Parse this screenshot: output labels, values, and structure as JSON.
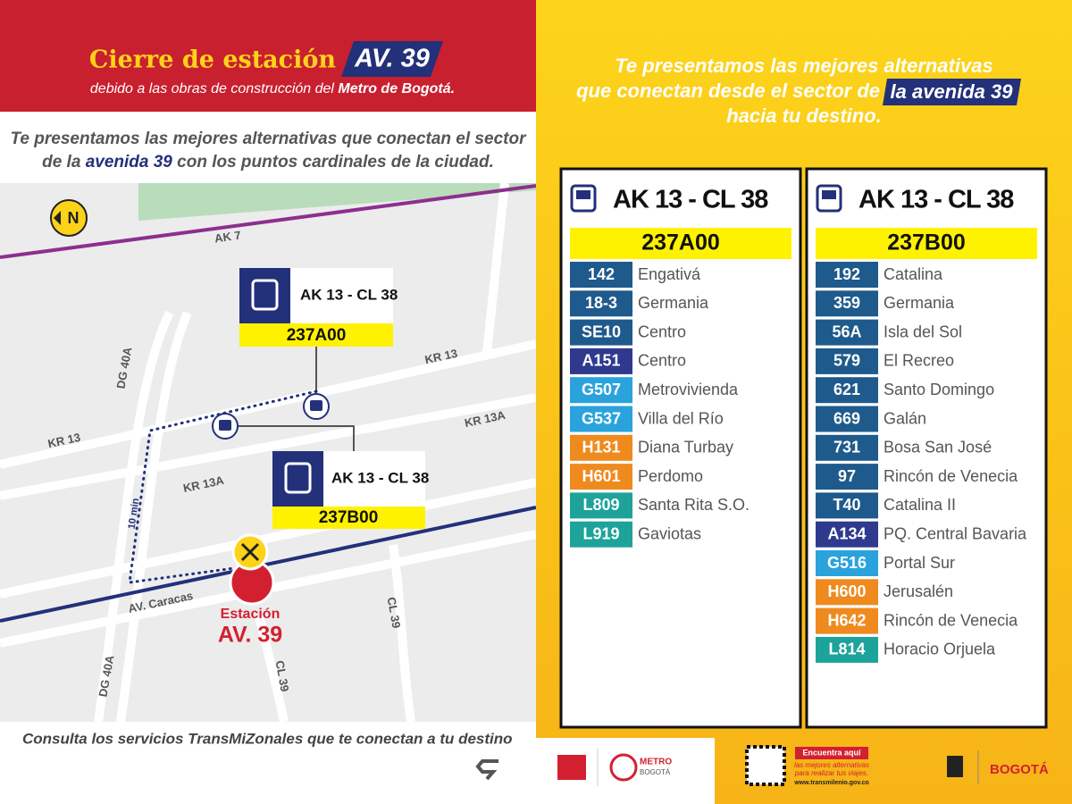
{
  "header": {
    "title": "Cierre de estación",
    "badge": "AV. 39",
    "subtitle": [
      "debido a las obras de construcción del",
      "Metro de Bogotá."
    ]
  },
  "intro": {
    "line1": "Te presentamos las mejores alternativas que conectan el sector",
    "line2": [
      "de la",
      "avenida 39",
      "con los puntos cardinales de la ciudad."
    ]
  },
  "map": {
    "compass": "N",
    "streets": [
      "AK 7",
      "KR 13",
      "KR 13A",
      "KR 13",
      "KR 13A",
      "DG 40A",
      "DG 40A",
      "CL 39",
      "CL 39",
      "AV. Caracas"
    ],
    "walk": "10 min",
    "stops": [
      {
        "name": "AK 13 - CL 38",
        "code": "237A00"
      },
      {
        "name": "AK 13 - CL 38",
        "code": "237B00"
      }
    ],
    "station": {
      "label": "Estación",
      "name": "AV. 39"
    }
  },
  "footer": {
    "text": "Consulta los servicios TransMiZonales que te conectan a tu destino"
  },
  "right_header": {
    "line1": "Te presentamos las mejores alternativas",
    "line2": "que conectan desde el sector de",
    "badge": "la avenida 39",
    "line3": "hacia tu destino."
  },
  "panels": [
    {
      "title": "AK 13 - CL 38",
      "code": "237A00",
      "routes": [
        {
          "code": "142",
          "destination": "Engativá",
          "color": "#1f5a8c"
        },
        {
          "code": "18-3",
          "destination": "Germania",
          "color": "#1f5a8c"
        },
        {
          "code": "SE10",
          "destination": "Centro",
          "color": "#1f5a8c"
        },
        {
          "code": "A151",
          "destination": "Centro",
          "color": "#2f3a8f"
        },
        {
          "code": "G507",
          "destination": "Metrovivienda",
          "color": "#2aa3dd"
        },
        {
          "code": "G537",
          "destination": "Villa del Río",
          "color": "#2aa3dd"
        },
        {
          "code": "H131",
          "destination": "Diana Turbay",
          "color": "#ef8a1e"
        },
        {
          "code": "H601",
          "destination": "Perdomo",
          "color": "#ef8a1e"
        },
        {
          "code": "L809",
          "destination": "Santa Rita S.O.",
          "color": "#1ea39b"
        },
        {
          "code": "L919",
          "destination": "Gaviotas",
          "color": "#1ea39b"
        }
      ]
    },
    {
      "title": "AK 13 - CL 38",
      "code": "237B00",
      "routes": [
        {
          "code": "192",
          "destination": "Catalina",
          "color": "#1f5a8c"
        },
        {
          "code": "359",
          "destination": "Germania",
          "color": "#1f5a8c"
        },
        {
          "code": "56A",
          "destination": "Isla del Sol",
          "color": "#1f5a8c"
        },
        {
          "code": "579",
          "destination": "El Recreo",
          "color": "#1f5a8c"
        },
        {
          "code": "621",
          "destination": "Santo Domingo",
          "color": "#1f5a8c"
        },
        {
          "code": "669",
          "destination": "Galán",
          "color": "#1f5a8c"
        },
        {
          "code": "731",
          "destination": "Bosa San José",
          "color": "#1f5a8c"
        },
        {
          "code": "97",
          "destination": "Rincón de Venecia",
          "color": "#1f5a8c"
        },
        {
          "code": "T40",
          "destination": "Catalina II",
          "color": "#1f5a8c"
        },
        {
          "code": "A134",
          "destination": "PQ. Central Bavaria",
          "color": "#2f3a8f"
        },
        {
          "code": "G516",
          "destination": "Portal Sur",
          "color": "#2aa3dd"
        },
        {
          "code": "H600",
          "destination": "Jerusalén",
          "color": "#ef8a1e"
        },
        {
          "code": "H642",
          "destination": "Rincón de Venecia",
          "color": "#ef8a1e"
        },
        {
          "code": "L814",
          "destination": "Horacio Orjuela",
          "color": "#1ea39b"
        }
      ]
    }
  ],
  "bottom": {
    "metro": [
      "METRO",
      "BOGOTÁ"
    ],
    "qr_title": "Encuentra aquí",
    "qr_text": [
      "las mejores alternativas",
      "para realizar tus viajes."
    ],
    "url": "www.transmilenio.gov.co",
    "city": "BOGOTÁ"
  }
}
